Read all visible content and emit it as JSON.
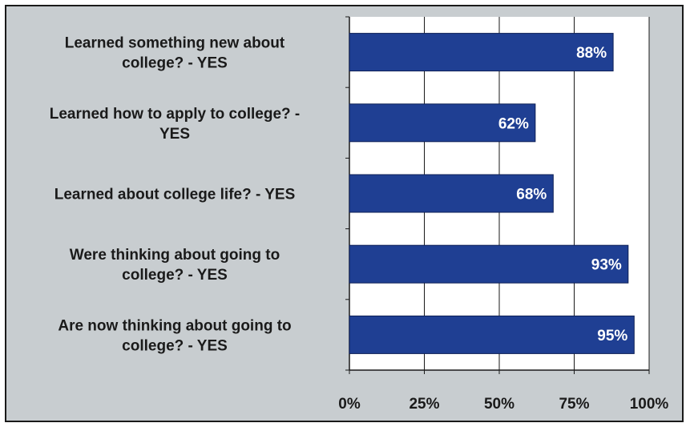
{
  "chart_data": {
    "type": "bar",
    "orientation": "horizontal",
    "categories": [
      [
        "Learned something new about",
        "college? - YES"
      ],
      [
        "Learned how to apply to college? -",
        "YES"
      ],
      [
        "Learned about college life? - YES"
      ],
      [
        "Were thinking about going to",
        "college? - YES"
      ],
      [
        "Are now thinking about going to",
        "college? - YES"
      ]
    ],
    "values": [
      88,
      62,
      68,
      93,
      95
    ],
    "data_labels": [
      "88%",
      "62%",
      "68%",
      "93%",
      "95%"
    ],
    "xlim": [
      0,
      100
    ],
    "ticks": [
      0,
      25,
      50,
      75,
      100
    ],
    "tick_labels": [
      "0%",
      "25%",
      "50%",
      "75%",
      "100%"
    ],
    "grid": true,
    "legend": false,
    "title": "",
    "xlabel": "",
    "ylabel": ""
  },
  "colors": {
    "background": "#c8cdd0",
    "plot_area": "#ffffff",
    "bar": "#1f3f93",
    "bar_edge": "#0d1f55",
    "grid": "#1a1a1a",
    "text": "#1a1a1a",
    "bar_text": "#ffffff"
  }
}
